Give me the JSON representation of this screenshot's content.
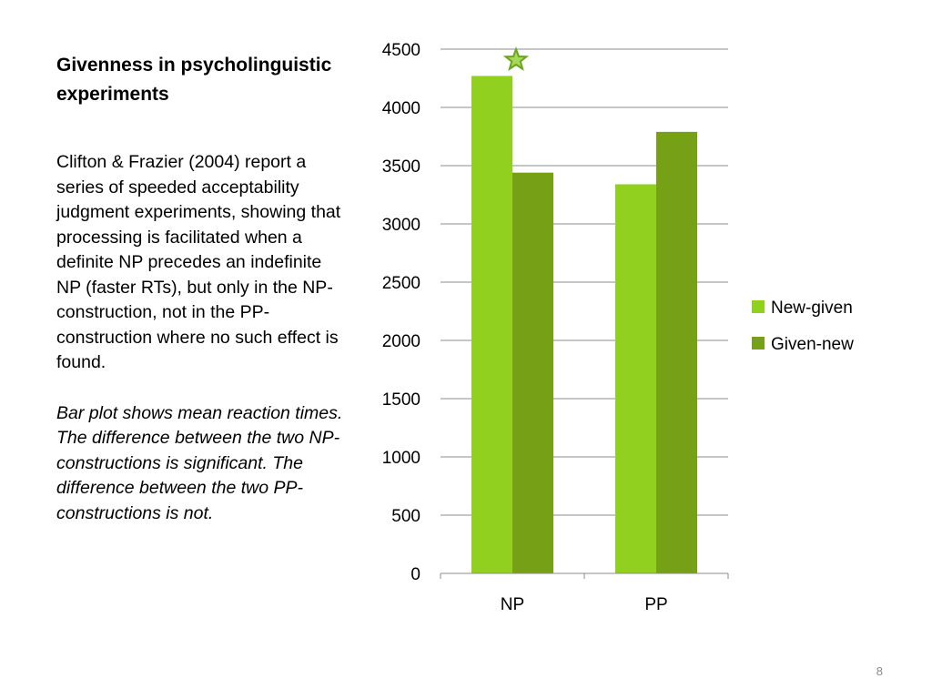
{
  "slide": {
    "title": "Givenness in psycholinguistic experiments",
    "body": "Clifton & Frazier (2004) report a series of speeded acceptability judgment experiments, showing that processing is facilitated when a definite NP precedes an indefinite NP (faster RTs), but only in the NP-construction, not in the PP-construction where no such effect is found.",
    "note": "Bar plot shows mean reaction times. The difference between the two NP-constructions is significant. The difference between the two PP-constructions is not.",
    "page_number": "8"
  },
  "chart_data": {
    "type": "bar",
    "categories": [
      "NP",
      "PP"
    ],
    "series": [
      {
        "name": "New-given",
        "values": [
          4270,
          3340
        ],
        "color": "#92d020"
      },
      {
        "name": "Given-new",
        "values": [
          3440,
          3790
        ],
        "color": "#76a116"
      }
    ],
    "ylim": [
      0,
      4500
    ],
    "yticks": [
      0,
      500,
      1000,
      1500,
      2000,
      2500,
      3000,
      3500,
      4000,
      4500
    ],
    "grid": true,
    "legend": "right",
    "annotation": {
      "symbol": "star-icon",
      "category": "NP",
      "color": "#6aa51d"
    }
  }
}
